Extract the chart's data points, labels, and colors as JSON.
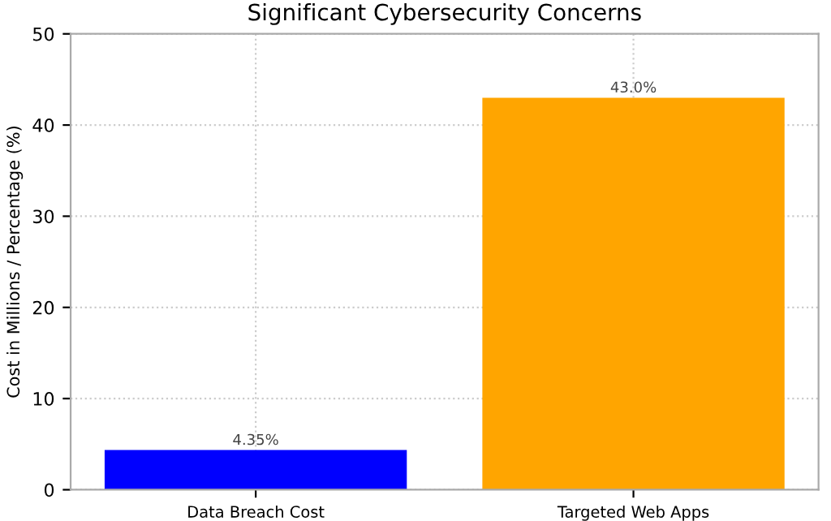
{
  "chart_data": {
    "type": "bar",
    "title": "Significant Cybersecurity Concerns",
    "ylabel": "Cost in Millions / Percentage (%)",
    "categories": [
      "Data Breach Cost",
      "Targeted Web Apps"
    ],
    "values": [
      4.35,
      43.0
    ],
    "colors": [
      "#0000ff",
      "#ffa500"
    ],
    "value_labels": [
      "4.35%",
      "43.0%"
    ],
    "ylim": [
      0,
      50
    ],
    "yticks": [
      0,
      10,
      20,
      30,
      40,
      50
    ],
    "grid": true
  }
}
